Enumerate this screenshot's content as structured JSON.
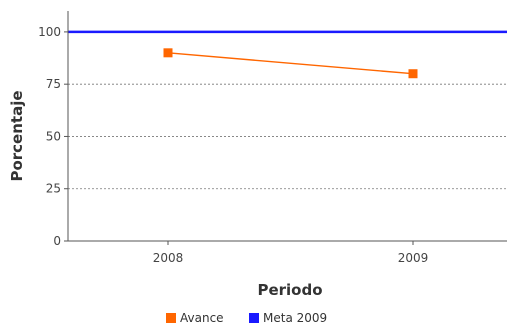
{
  "chart_data": {
    "type": "line",
    "title": "",
    "xlabel": "Periodo",
    "ylabel": "Porcentaje",
    "categories": [
      "2008",
      "2009"
    ],
    "ylim": [
      0,
      110
    ],
    "yticks": [
      0,
      25,
      50,
      75,
      100
    ],
    "y_grid": true,
    "legend_position": "bottom",
    "series": [
      {
        "name": "Avance",
        "values": [
          90,
          80
        ],
        "color": "#ff6600",
        "marker": "square"
      },
      {
        "name": "Meta 2009",
        "type": "horizontal-line",
        "value": 100,
        "color": "#1a1aff",
        "marker": "square"
      }
    ]
  }
}
